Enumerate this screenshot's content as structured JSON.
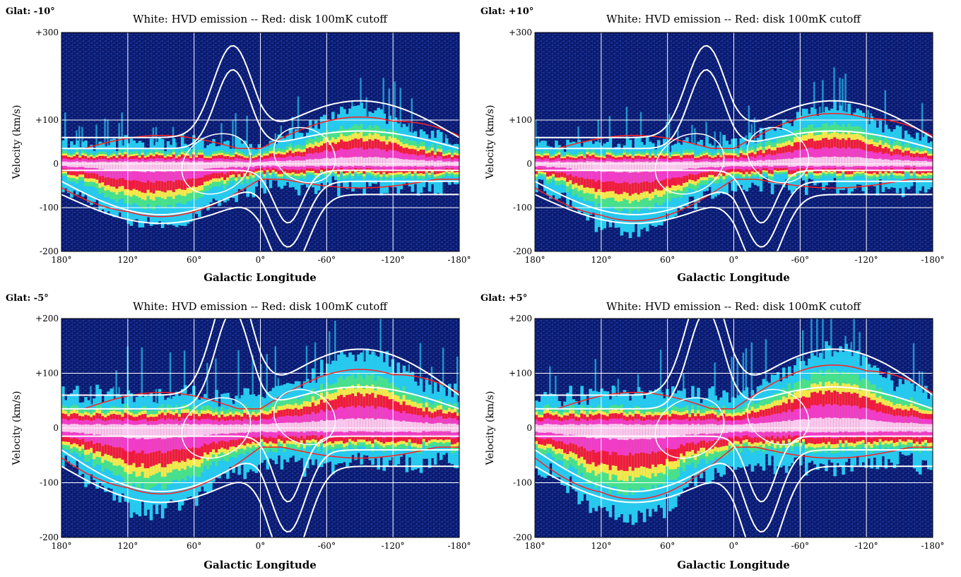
{
  "figure": {
    "xlabel": "Galactic Longitude",
    "ylabel": "Velocity (km/s)"
  },
  "chart_data": [
    {
      "type": "heatmap",
      "glat_label": "Glat: -10°",
      "title": "White: HVD emission -- Red: disk 100mK cutoff",
      "xlabel": "Galactic Longitude",
      "ylabel": "Velocity (km/s)",
      "xlim": [
        180,
        -180
      ],
      "ylim": [
        -200,
        300
      ],
      "x_ticks": [
        180,
        120,
        60,
        0,
        -60,
        -120,
        -180
      ],
      "x_tick_labels": [
        "180°",
        "120°",
        "60°",
        "0°",
        "-60°",
        "-120°",
        "-180°"
      ],
      "y_ticks": [
        -200,
        -100,
        0,
        100,
        300
      ],
      "y_tick_labels": [
        "-200",
        "-100",
        "0",
        "+100",
        "+300"
      ],
      "grid": true
    },
    {
      "type": "heatmap",
      "glat_label": "Glat: +10°",
      "title": "White: HVD emission -- Red: disk 100mK cutoff",
      "xlabel": "Galactic Longitude",
      "ylabel": "Velocity (km/s)",
      "xlim": [
        180,
        -180
      ],
      "ylim": [
        -200,
        300
      ],
      "x_ticks": [
        180,
        120,
        60,
        0,
        -60,
        -120,
        -180
      ],
      "x_tick_labels": [
        "180°",
        "120°",
        "60°",
        "0°",
        "-60°",
        "-120°",
        "-180°"
      ],
      "y_ticks": [
        -200,
        -100,
        0,
        100,
        300
      ],
      "y_tick_labels": [
        "-200",
        "-100",
        "0",
        "+100",
        "+300"
      ],
      "grid": true
    },
    {
      "type": "heatmap",
      "glat_label": "Glat: -5°",
      "title": "White: HVD emission -- Red: disk 100mK cutoff",
      "xlabel": "Galactic Longitude",
      "ylabel": "Velocity (km/s)",
      "xlim": [
        180,
        -180
      ],
      "ylim": [
        -200,
        200
      ],
      "x_ticks": [
        180,
        120,
        60,
        0,
        -60,
        -120,
        -180
      ],
      "x_tick_labels": [
        "180°",
        "120°",
        "60°",
        "0°",
        "-60°",
        "-120°",
        "-180°"
      ],
      "y_ticks": [
        -200,
        -100,
        0,
        100,
        200
      ],
      "y_tick_labels": [
        "-200",
        "-100",
        "0",
        "+100",
        "+200"
      ],
      "grid": true
    },
    {
      "type": "heatmap",
      "glat_label": "Glat: +5°",
      "title": "White: HVD emission -- Red: disk 100mK cutoff",
      "xlabel": "Galactic Longitude",
      "ylabel": "Velocity (km/s)",
      "xlim": [
        180,
        -180
      ],
      "ylim": [
        -200,
        200
      ],
      "x_ticks": [
        180,
        120,
        60,
        0,
        -60,
        -120,
        -180
      ],
      "x_tick_labels": [
        "180°",
        "120°",
        "60°",
        "0°",
        "-60°",
        "-120°",
        "-180°"
      ],
      "y_ticks": [
        -200,
        -100,
        0,
        100,
        200
      ],
      "y_tick_labels": [
        "-200",
        "-100",
        "0",
        "+100",
        "+200"
      ],
      "grid": true
    }
  ],
  "colors": {
    "background": "#0b1a6e",
    "noise": "#1d3fae",
    "cyan": "#27c9ee",
    "green": "#49e08a",
    "yellow": "#f6e84a",
    "red": "#ef1b3f",
    "magenta": "#f03cc8",
    "pink": "#f9c8ee",
    "disk_curve": "#ff2020",
    "hvd_curve": "#ffffff",
    "grid": "#ffffff"
  }
}
